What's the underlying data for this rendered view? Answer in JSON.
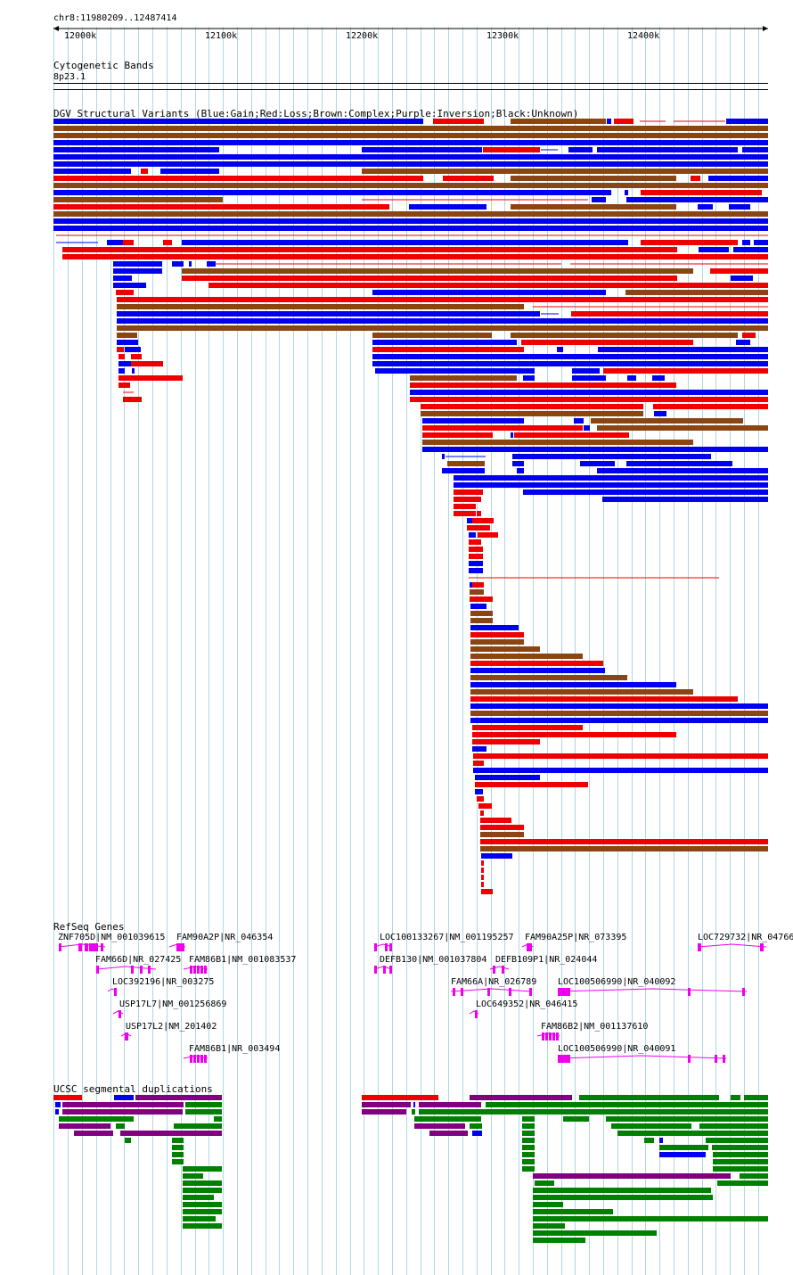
{
  "position": "chr8:11980209..12487414",
  "ruler": {
    "ticks": [
      "12000k",
      "12100k",
      "12200k",
      "12300k",
      "12400k"
    ]
  },
  "cytobands": {
    "title": "Cytogenetic Bands",
    "band": "8p23.1"
  },
  "dgv": {
    "title": "DGV Structural Variants (Blue:Gain;Red:Loss;Brown:Complex;Purple:Inversion;Black:Unknown)"
  },
  "refseq": {
    "title": "RefSeq Genes",
    "labels": [
      "ZNF705D|NM_001039615",
      "FAM90A2P|NR_046354",
      "LOC100133267|NM_001195257",
      "FAM90A25P|NR_073395",
      "LOC729732|NR_04766",
      "FAM66D|NR_027425",
      "FAM86B1|NM_001083537",
      "DEFB130|NM_001037804",
      "DEFB109P1|NR_024044",
      "LOC392196|NR_003275",
      "FAM66A|NR_026789",
      "LOC100506990|NR_040092",
      "USP17L7|NM_001256869",
      "LOC649352|NR_046415",
      "USP17L2|NM_201402",
      "FAM86B2|NM_001137610",
      "FAM86B1|NR_003494",
      "LOC100506990|NR_040091"
    ]
  },
  "segdup": {
    "title": "UCSC segmental duplications"
  },
  "colors": {
    "gain": "#0000ee",
    "loss": "#ee0000",
    "complex": "#8b4513",
    "inversion": "#8b008b",
    "gene": "#ee00ee",
    "segdup_green": "#008000",
    "segdup_red": "#ee0000",
    "segdup_purple": "#800080",
    "segdup_blue": "#0000ee",
    "grid": "#add8e6"
  }
}
